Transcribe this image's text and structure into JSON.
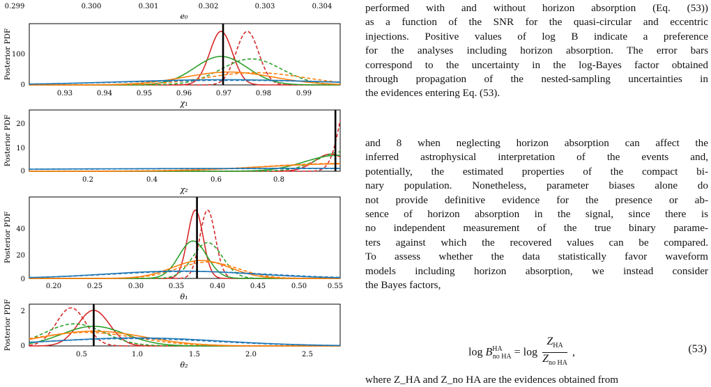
{
  "figure": {
    "top_strip": {
      "ticks": [
        "0.299",
        "0.300",
        "0.301",
        "0.302",
        "0.303",
        "0.304"
      ],
      "xlabel": "e₀"
    },
    "panels": [
      {
        "ylabel": "Posterior PDF",
        "xlabel": "χ₁",
        "yticks": [
          "0",
          "100"
        ],
        "xticks": [
          "0.93",
          "0.94",
          "0.95",
          "0.96",
          "0.97",
          "0.98",
          "0.99"
        ]
      },
      {
        "ylabel": "Posterior PDF",
        "xlabel": "χ₂",
        "yticks": [
          "0",
          "10",
          "20"
        ],
        "xticks": [
          "0.2",
          "0.4",
          "0.6",
          "0.8"
        ]
      },
      {
        "ylabel": "Posterior PDF",
        "xlabel": "θ₁",
        "yticks": [
          "0",
          "20",
          "40"
        ],
        "xticks": [
          "0.20",
          "0.25",
          "0.30",
          "0.35",
          "0.40",
          "0.45",
          "0.50",
          "0.55"
        ]
      },
      {
        "ylabel": "Posterior PDF",
        "xlabel": "θ₂",
        "yticks": [
          "0",
          "2"
        ],
        "xticks": [
          "0.5",
          "1.0",
          "1.5",
          "2.0",
          "2.5"
        ]
      }
    ]
  },
  "chart_data": [
    {
      "type": "line",
      "xlabel": "χ₁",
      "ylabel": "Posterior PDF",
      "xlim": [
        0.922,
        0.999
      ],
      "ylim": [
        0,
        200
      ],
      "truth": 0.97,
      "series": [
        {
          "color": "#d62728",
          "dashed": false,
          "mode": 0.9695,
          "sigma": 0.0028,
          "peak": 175
        },
        {
          "color": "#d62728",
          "dashed": true,
          "mode": 0.976,
          "sigma": 0.0028,
          "peak": 175
        },
        {
          "color": "#2ca02c",
          "dashed": false,
          "mode": 0.9695,
          "sigma": 0.0065,
          "peak": 93
        },
        {
          "color": "#2ca02c",
          "dashed": true,
          "mode": 0.977,
          "sigma": 0.0075,
          "peak": 85
        },
        {
          "color": "#ff7f0e",
          "dashed": false,
          "mode": 0.9715,
          "sigma": 0.011,
          "peak": 42
        },
        {
          "color": "#ff7f0e",
          "dashed": true,
          "mode": 0.978,
          "sigma": 0.012,
          "peak": 40
        },
        {
          "color": "#1f77b4",
          "dashed": false,
          "mode": 0.97,
          "sigma": 0.025,
          "peak": 17
        },
        {
          "color": "#1f77b4",
          "dashed": true,
          "mode": 0.972,
          "sigma": 0.027,
          "peak": 15
        }
      ]
    },
    {
      "type": "line",
      "xlabel": "χ₂",
      "ylabel": "Posterior PDF",
      "xlim": [
        0.01,
        0.99
      ],
      "ylim": [
        0,
        25
      ],
      "truth": 0.975,
      "series": [
        {
          "color": "#d62728",
          "dashed": false,
          "mode": 0.96,
          "sigma": 0.05,
          "peak": 7
        },
        {
          "color": "#d62728",
          "dashed": true,
          "mode": 1.03,
          "sigma": 0.035,
          "peak": 40
        },
        {
          "color": "#2ca02c",
          "dashed": false,
          "mode": 0.98,
          "sigma": 0.1,
          "peak": 6.5
        },
        {
          "color": "#2ca02c",
          "dashed": true,
          "mode": 1.0,
          "sigma": 0.08,
          "peak": 8
        },
        {
          "color": "#ff7f0e",
          "dashed": false,
          "mode": 1.0,
          "sigma": 0.25,
          "peak": 3
        },
        {
          "color": "#ff7f0e",
          "dashed": true,
          "mode": 1.0,
          "sigma": 0.25,
          "peak": 3.2
        },
        {
          "color": "#1f77b4",
          "dashed": false,
          "mode": 1.0,
          "sigma": 1.2,
          "peak": 1.2
        },
        {
          "color": "#1f77b4",
          "dashed": true,
          "mode": 1.0,
          "sigma": 1.2,
          "peak": 1.1
        }
      ]
    },
    {
      "type": "line",
      "xlabel": "θ₁",
      "ylabel": "Posterior PDF",
      "xlim": [
        0.175,
        0.555
      ],
      "ylim": [
        0,
        50
      ],
      "truth": 0.38,
      "series": [
        {
          "color": "#d62728",
          "dashed": false,
          "mode": 0.378,
          "sigma": 0.0095,
          "peak": 42
        },
        {
          "color": "#d62728",
          "dashed": true,
          "mode": 0.393,
          "sigma": 0.0095,
          "peak": 42
        },
        {
          "color": "#2ca02c",
          "dashed": false,
          "mode": 0.375,
          "sigma": 0.017,
          "peak": 23
        },
        {
          "color": "#2ca02c",
          "dashed": true,
          "mode": 0.393,
          "sigma": 0.018,
          "peak": 22
        },
        {
          "color": "#ff7f0e",
          "dashed": false,
          "mode": 0.385,
          "sigma": 0.035,
          "peak": 11
        },
        {
          "color": "#ff7f0e",
          "dashed": true,
          "mode": 0.393,
          "sigma": 0.037,
          "peak": 10
        },
        {
          "color": "#1f77b4",
          "dashed": false,
          "mode": 0.36,
          "sigma": 0.09,
          "peak": 4.5
        },
        {
          "color": "#1f77b4",
          "dashed": true,
          "mode": 0.37,
          "sigma": 0.095,
          "peak": 4.3
        }
      ]
    },
    {
      "type": "line",
      "xlabel": "θ₂",
      "ylabel": "Posterior PDF",
      "xlim": [
        0.05,
        2.8
      ],
      "ylim": [
        0,
        3.4
      ],
      "truth": 0.62,
      "series": [
        {
          "color": "#d62728",
          "dashed": false,
          "mode": 0.62,
          "sigma": 0.14,
          "peak": 2.9
        },
        {
          "color": "#d62728",
          "dashed": true,
          "mode": 0.42,
          "sigma": 0.13,
          "peak": 3.1
        },
        {
          "color": "#2ca02c",
          "dashed": false,
          "mode": 0.62,
          "sigma": 0.28,
          "peak": 1.6
        },
        {
          "color": "#2ca02c",
          "dashed": true,
          "mode": 0.45,
          "sigma": 0.26,
          "peak": 1.8
        },
        {
          "color": "#ff7f0e",
          "dashed": false,
          "mode": 0.62,
          "sigma": 0.45,
          "peak": 1.2
        },
        {
          "color": "#ff7f0e",
          "dashed": true,
          "mode": 0.55,
          "sigma": 0.45,
          "peak": 1.1
        },
        {
          "color": "#1f77b4",
          "dashed": false,
          "mode": 1.0,
          "sigma": 0.75,
          "peak": 0.65
        },
        {
          "color": "#1f77b4",
          "dashed": true,
          "mode": 0.95,
          "sigma": 0.75,
          "peak": 0.6
        }
      ]
    }
  ],
  "text": {
    "caption_lines": [
      "performed with and without horizon absorption (Eq. (53))",
      "as a function of the SNR for the quasi-circular and eccentric",
      "injections. Positive values of log B indicate a preference",
      "for the analyses including horizon absorption. The error bars",
      "correspond to the uncertainty in the log-Bayes factor obtained",
      "through propagation of the nested-sampling uncertainties in",
      "the evidences entering Eq. (53)."
    ],
    "body_lines": [
      "and 8 when neglecting horizon absorption can affect the",
      "inferred astrophysical interpretation of the events and,",
      "potentially, the estimated properties of the compact bi-",
      "nary population. Nonetheless, parameter biases alone do",
      "not provide definitive evidence for the presence or ab-",
      "sence of horizon absorption in the signal, since there is",
      "no independent measurement of the true binary parame-",
      "ters against which the recovered values can be compared.",
      "To assess whether the data statistically favor waveform",
      "models including horizon absorption, we instead consider",
      "the Bayes factors,"
    ],
    "equation_number": "(53)",
    "trailing_line": "where Z_HA and Z_no HA are the evidences obtained from"
  }
}
